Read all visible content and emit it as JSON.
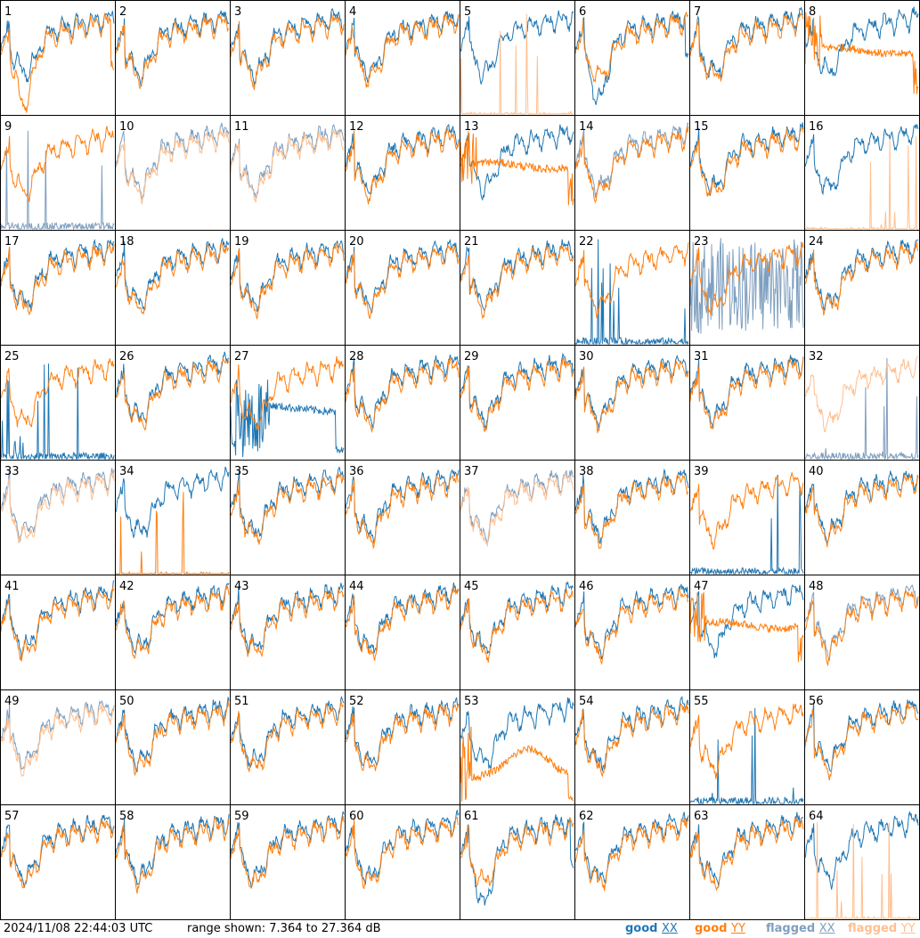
{
  "footer": {
    "timestamp": "2024/11/08 22:44:03 UTC",
    "range_text": "range shown: 7.364 to 27.364 dB"
  },
  "legend": [
    {
      "key": "good-xx",
      "word": "good",
      "pol": "XX",
      "color": "#1f77b4"
    },
    {
      "key": "good-yy",
      "word": "good",
      "pol": "YY",
      "color": "#ff7f0e"
    },
    {
      "key": "flagged-xx",
      "word": "flagged",
      "pol": "XX",
      "color": "#7f9fbf"
    },
    {
      "key": "flagged-yy",
      "word": "flagged",
      "pol": "YY",
      "color": "#ffbf8f"
    }
  ],
  "chart_data": {
    "type": "line",
    "grid": "8x8 small multiples",
    "ylim": [
      7.364,
      27.364
    ],
    "yunit": "dB",
    "colors": {
      "good_xx": "#1f77b4",
      "good_yy": "#ff7f0e",
      "flagged_xx": "#7f9fbf",
      "flagged_yy": "#ffbf8f"
    },
    "panels": [
      {
        "n": "1",
        "xx": "good",
        "yy": "good",
        "xx_shape": "normal",
        "yy_shape": "dip"
      },
      {
        "n": "2",
        "xx": "good",
        "yy": "good",
        "xx_shape": "normal",
        "yy_shape": "normal"
      },
      {
        "n": "3",
        "xx": "good",
        "yy": "good",
        "xx_shape": "normal",
        "yy_shape": "normal"
      },
      {
        "n": "4",
        "xx": "good",
        "yy": "good",
        "xx_shape": "normal",
        "yy_shape": "normal"
      },
      {
        "n": "5",
        "xx": "good",
        "yy": "flagged",
        "xx_shape": "normal",
        "yy_shape": "spikes"
      },
      {
        "n": "6",
        "xx": "good",
        "yy": "good",
        "xx_shape": "dip",
        "yy_shape": "normal"
      },
      {
        "n": "7",
        "xx": "good",
        "yy": "good",
        "xx_shape": "normal",
        "yy_shape": "normal"
      },
      {
        "n": "8",
        "xx": "good",
        "yy": "good",
        "xx_shape": "normal",
        "yy_shape": "flat"
      },
      {
        "n": "9",
        "xx": "flagged",
        "yy": "good",
        "xx_shape": "spikes",
        "yy_shape": "normal"
      },
      {
        "n": "10",
        "xx": "flagged",
        "yy": "flagged",
        "xx_shape": "normal",
        "yy_shape": "normal"
      },
      {
        "n": "11",
        "xx": "flagged",
        "yy": "flagged",
        "xx_shape": "normal",
        "yy_shape": "normal"
      },
      {
        "n": "12",
        "xx": "good",
        "yy": "good",
        "xx_shape": "normal",
        "yy_shape": "normal"
      },
      {
        "n": "13",
        "xx": "good",
        "yy": "good",
        "xx_shape": "normal",
        "yy_shape": "flat"
      },
      {
        "n": "14",
        "xx": "flagged",
        "yy": "good",
        "xx_shape": "normal",
        "yy_shape": "normal"
      },
      {
        "n": "15",
        "xx": "good",
        "yy": "good",
        "xx_shape": "normal",
        "yy_shape": "normal"
      },
      {
        "n": "16",
        "xx": "good",
        "yy": "flagged",
        "xx_shape": "normal",
        "yy_shape": "spikes"
      },
      {
        "n": "17",
        "xx": "good",
        "yy": "good",
        "xx_shape": "normal",
        "yy_shape": "normal"
      },
      {
        "n": "18",
        "xx": "good",
        "yy": "good",
        "xx_shape": "normal",
        "yy_shape": "normal"
      },
      {
        "n": "19",
        "xx": "good",
        "yy": "good",
        "xx_shape": "normal",
        "yy_shape": "normal"
      },
      {
        "n": "20",
        "xx": "good",
        "yy": "good",
        "xx_shape": "normal",
        "yy_shape": "normal"
      },
      {
        "n": "21",
        "xx": "good",
        "yy": "good",
        "xx_shape": "normal",
        "yy_shape": "normal"
      },
      {
        "n": "22",
        "xx": "good",
        "yy": "good",
        "xx_shape": "spikes",
        "yy_shape": "normal"
      },
      {
        "n": "23",
        "xx": "flagged",
        "yy": "good",
        "xx_shape": "noisy",
        "yy_shape": "normal"
      },
      {
        "n": "24",
        "xx": "good",
        "yy": "good",
        "xx_shape": "normal",
        "yy_shape": "normal"
      },
      {
        "n": "25",
        "xx": "good",
        "yy": "good",
        "xx_shape": "spikes",
        "yy_shape": "normal"
      },
      {
        "n": "26",
        "xx": "good",
        "yy": "good",
        "xx_shape": "normal",
        "yy_shape": "normal"
      },
      {
        "n": "27",
        "xx": "good",
        "yy": "good",
        "xx_shape": "decay",
        "yy_shape": "normal"
      },
      {
        "n": "28",
        "xx": "good",
        "yy": "good",
        "xx_shape": "normal",
        "yy_shape": "normal"
      },
      {
        "n": "29",
        "xx": "good",
        "yy": "good",
        "xx_shape": "normal",
        "yy_shape": "normal"
      },
      {
        "n": "30",
        "xx": "good",
        "yy": "good",
        "xx_shape": "normal",
        "yy_shape": "normal"
      },
      {
        "n": "31",
        "xx": "good",
        "yy": "good",
        "xx_shape": "normal",
        "yy_shape": "normal"
      },
      {
        "n": "32",
        "xx": "flagged",
        "yy": "flagged",
        "xx_shape": "spikes",
        "yy_shape": "normal"
      },
      {
        "n": "33",
        "xx": "flagged",
        "yy": "flagged",
        "xx_shape": "normal",
        "yy_shape": "normal"
      },
      {
        "n": "34",
        "xx": "good",
        "yy": "good",
        "xx_shape": "normal",
        "yy_shape": "spikes"
      },
      {
        "n": "35",
        "xx": "good",
        "yy": "good",
        "xx_shape": "normal",
        "yy_shape": "normal"
      },
      {
        "n": "36",
        "xx": "good",
        "yy": "good",
        "xx_shape": "normal",
        "yy_shape": "normal"
      },
      {
        "n": "37",
        "xx": "flagged",
        "yy": "flagged",
        "xx_shape": "normal",
        "yy_shape": "normal"
      },
      {
        "n": "38",
        "xx": "good",
        "yy": "good",
        "xx_shape": "normal",
        "yy_shape": "normal"
      },
      {
        "n": "39",
        "xx": "good",
        "yy": "good",
        "xx_shape": "spikes",
        "yy_shape": "normal"
      },
      {
        "n": "40",
        "xx": "good",
        "yy": "good",
        "xx_shape": "normal",
        "yy_shape": "normal"
      },
      {
        "n": "41",
        "xx": "good",
        "yy": "good",
        "xx_shape": "normal",
        "yy_shape": "normal"
      },
      {
        "n": "42",
        "xx": "good",
        "yy": "good",
        "xx_shape": "normal",
        "yy_shape": "normal"
      },
      {
        "n": "43",
        "xx": "good",
        "yy": "good",
        "xx_shape": "normal",
        "yy_shape": "normal"
      },
      {
        "n": "44",
        "xx": "good",
        "yy": "good",
        "xx_shape": "normal",
        "yy_shape": "normal"
      },
      {
        "n": "45",
        "xx": "good",
        "yy": "good",
        "xx_shape": "normal",
        "yy_shape": "normal"
      },
      {
        "n": "46",
        "xx": "good",
        "yy": "good",
        "xx_shape": "normal",
        "yy_shape": "normal"
      },
      {
        "n": "47",
        "xx": "good",
        "yy": "good",
        "xx_shape": "normal",
        "yy_shape": "flat"
      },
      {
        "n": "48",
        "xx": "flagged",
        "yy": "good",
        "xx_shape": "normal",
        "yy_shape": "normal"
      },
      {
        "n": "49",
        "xx": "flagged",
        "yy": "flagged",
        "xx_shape": "normal",
        "yy_shape": "normal"
      },
      {
        "n": "50",
        "xx": "good",
        "yy": "good",
        "xx_shape": "normal",
        "yy_shape": "normal"
      },
      {
        "n": "51",
        "xx": "good",
        "yy": "good",
        "xx_shape": "normal",
        "yy_shape": "normal"
      },
      {
        "n": "52",
        "xx": "good",
        "yy": "good",
        "xx_shape": "normal",
        "yy_shape": "normal"
      },
      {
        "n": "53",
        "xx": "good",
        "yy": "good",
        "xx_shape": "normal",
        "yy_shape": "hump"
      },
      {
        "n": "54",
        "xx": "good",
        "yy": "good",
        "xx_shape": "normal",
        "yy_shape": "normal"
      },
      {
        "n": "55",
        "xx": "good",
        "yy": "good",
        "xx_shape": "spikes",
        "yy_shape": "normal"
      },
      {
        "n": "56",
        "xx": "good",
        "yy": "good",
        "xx_shape": "normal",
        "yy_shape": "normal"
      },
      {
        "n": "57",
        "xx": "good",
        "yy": "good",
        "xx_shape": "normal",
        "yy_shape": "normal"
      },
      {
        "n": "58",
        "xx": "good",
        "yy": "good",
        "xx_shape": "normal",
        "yy_shape": "normal"
      },
      {
        "n": "59",
        "xx": "good",
        "yy": "good",
        "xx_shape": "normal",
        "yy_shape": "normal"
      },
      {
        "n": "60",
        "xx": "good",
        "yy": "good",
        "xx_shape": "normal",
        "yy_shape": "normal"
      },
      {
        "n": "61",
        "xx": "good",
        "yy": "good",
        "xx_shape": "dip",
        "yy_shape": "normal"
      },
      {
        "n": "62",
        "xx": "good",
        "yy": "good",
        "xx_shape": "normal",
        "yy_shape": "normal"
      },
      {
        "n": "63",
        "xx": "good",
        "yy": "good",
        "xx_shape": "normal",
        "yy_shape": "normal"
      },
      {
        "n": "64",
        "xx": "good",
        "yy": "flagged",
        "xx_shape": "normal",
        "yy_shape": "spikes"
      }
    ]
  }
}
